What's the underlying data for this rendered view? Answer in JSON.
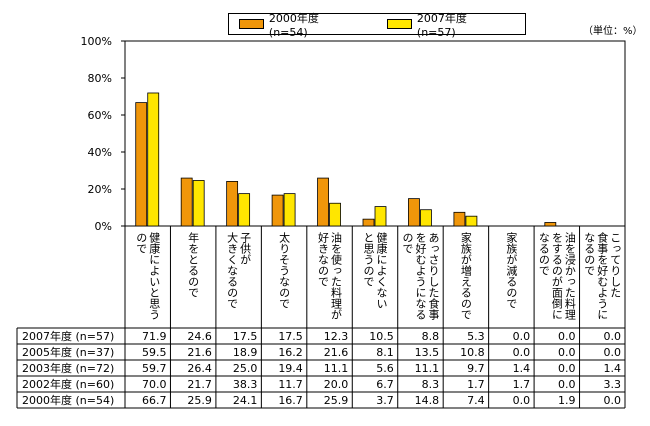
{
  "unit_label": "（単位：%）",
  "chart_data": {
    "type": "bar",
    "title": "",
    "xlabel": "",
    "ylabel": "",
    "ylim": [
      0,
      100
    ],
    "yticks": [
      "0%",
      "20%",
      "40%",
      "60%",
      "80%",
      "100%"
    ],
    "tick_values": [
      0,
      20,
      40,
      60,
      80,
      100
    ],
    "grid": false,
    "legend_position": "top",
    "categories": [
      [
        "健康によいと思う",
        "ので"
      ],
      [
        "年をとるので"
      ],
      [
        "子供が",
        "大きくなるので"
      ],
      [
        "太りそうなので"
      ],
      [
        "油を使った料理が",
        "好きなので"
      ],
      [
        "健康によくない",
        "と思うので"
      ],
      [
        "あっさりした食事",
        "を好むようになる",
        "ので"
      ],
      [
        "家族が増えるので"
      ],
      [
        "家族が減るので"
      ],
      [
        "油を浸かった料理",
        "をするのが面倒に",
        "なるので"
      ],
      [
        "こってりした",
        "食事を好むように",
        "なるので"
      ]
    ],
    "series": [
      {
        "name": "2000年度 (n=54)",
        "color": "#F0960A",
        "values": [
          66.7,
          25.9,
          24.1,
          16.7,
          25.9,
          3.7,
          14.8,
          7.4,
          0.0,
          1.9,
          0.0
        ]
      },
      {
        "name": "2007年度 (n=57)",
        "color": "#FFE600",
        "values": [
          71.9,
          24.6,
          17.5,
          17.5,
          12.3,
          10.5,
          8.8,
          5.3,
          0.0,
          0.0,
          0.0
        ]
      }
    ],
    "table": [
      {
        "label": "2007年度 (n=57)",
        "values": [
          "71.9",
          "24.6",
          "17.5",
          "17.5",
          "12.3",
          "10.5",
          "8.8",
          "5.3",
          "0.0",
          "0.0",
          "0.0"
        ]
      },
      {
        "label": "2005年度 (n=37)",
        "values": [
          "59.5",
          "21.6",
          "18.9",
          "16.2",
          "21.6",
          "8.1",
          "13.5",
          "10.8",
          "0.0",
          "0.0",
          "0.0"
        ]
      },
      {
        "label": "2003年度 (n=72)",
        "values": [
          "59.7",
          "26.4",
          "25.0",
          "19.4",
          "11.1",
          "5.6",
          "11.1",
          "9.7",
          "1.4",
          "0.0",
          "1.4"
        ]
      },
      {
        "label": "2002年度 (n=60)",
        "values": [
          "70.0",
          "21.7",
          "38.3",
          "11.7",
          "20.0",
          "6.7",
          "8.3",
          "1.7",
          "1.7",
          "0.0",
          "3.3"
        ]
      },
      {
        "label": "2000年度 (n=54)",
        "values": [
          "66.7",
          "25.9",
          "24.1",
          "16.7",
          "25.9",
          "3.7",
          "14.8",
          "7.4",
          "0.0",
          "1.9",
          "0.0"
        ]
      }
    ]
  }
}
